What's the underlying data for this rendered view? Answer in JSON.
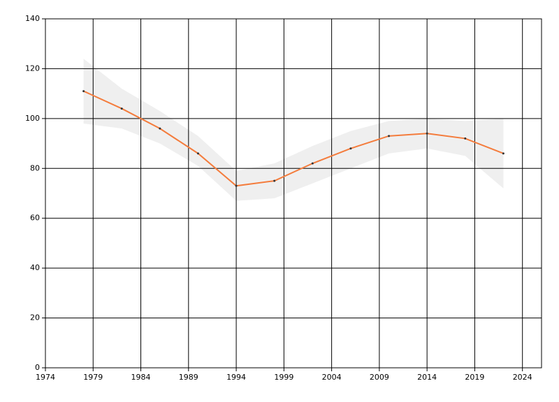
{
  "chart_data": {
    "type": "line",
    "x": [
      1978,
      1982,
      1986,
      1990,
      1994,
      1998,
      2002,
      2006,
      2010,
      2014,
      2018,
      2022
    ],
    "values": [
      111,
      104,
      96,
      86,
      73,
      75,
      82,
      88,
      93,
      94,
      92,
      86
    ],
    "color": "#f47c3c",
    "band": {
      "upper": [
        124,
        112,
        103,
        93,
        79,
        82,
        89,
        95,
        99,
        100,
        99,
        100
      ],
      "lower": [
        98,
        96,
        90,
        81,
        67,
        68,
        74,
        80,
        86,
        88,
        85,
        72
      ],
      "color": "#efefef"
    },
    "xlim": [
      1974,
      2026
    ],
    "xticks": [
      1974,
      1979,
      1984,
      1989,
      1994,
      1999,
      2004,
      2009,
      2014,
      2019,
      2024
    ],
    "ylim": [
      0,
      140
    ],
    "yticks": [
      0,
      20,
      40,
      60,
      80,
      100,
      120,
      140
    ],
    "grid": true
  }
}
